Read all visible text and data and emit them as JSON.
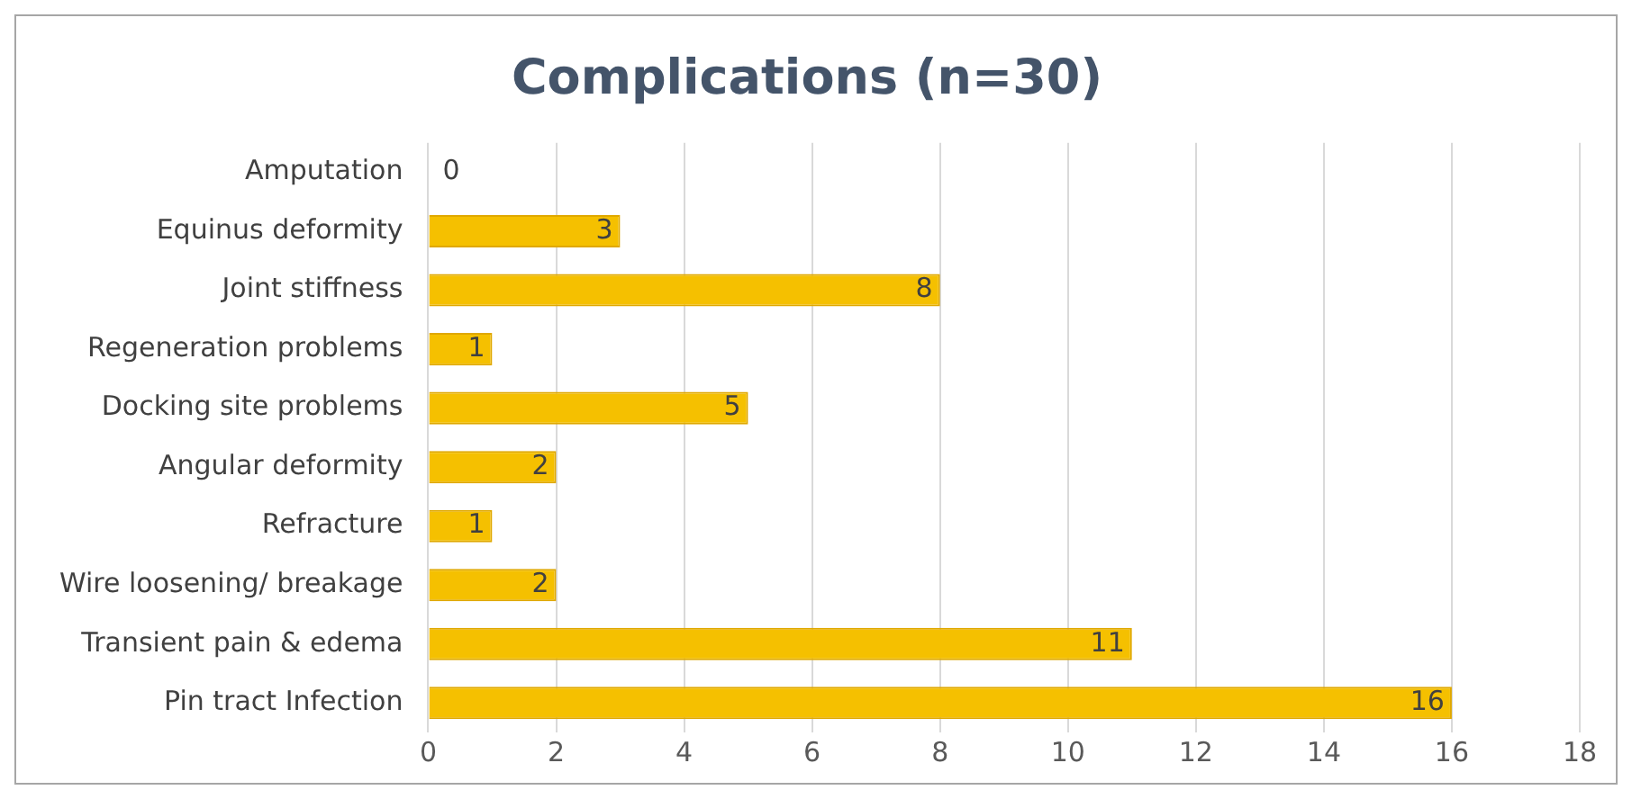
{
  "chart_data": {
    "type": "bar",
    "orientation": "horizontal",
    "title": "Complications (n=30)",
    "categories": [
      "Amputation",
      "Equinus deformity",
      "Joint stiffness",
      "Regeneration problems",
      "Docking site problems",
      "Angular deformity",
      "Refracture",
      "Wire loosening/ breakage",
      "Transient pain & edema",
      "Pin tract Infection"
    ],
    "values": [
      0,
      3,
      8,
      1,
      5,
      2,
      1,
      2,
      11,
      16
    ],
    "color": "#f5c000",
    "xlim": [
      0,
      18
    ],
    "xticks": [
      0,
      2,
      4,
      6,
      8,
      10,
      12,
      14,
      16,
      18
    ],
    "grid": "x",
    "legend": false,
    "data_labels": true
  }
}
